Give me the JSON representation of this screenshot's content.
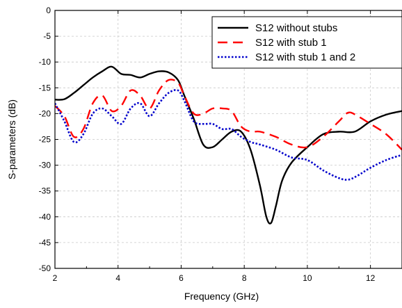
{
  "chart_data": {
    "type": "line",
    "title": "",
    "xlabel": "Frequency (GHz)",
    "ylabel": "S-parameters (dB)",
    "xlim": [
      2,
      13
    ],
    "ylim": [
      -50,
      0
    ],
    "xticks": [
      2,
      4,
      6,
      8,
      10,
      12
    ],
    "yticks": [
      0,
      -5,
      -10,
      -15,
      -20,
      -25,
      -30,
      -35,
      -40,
      -45,
      -50
    ],
    "grid": true,
    "legend_position": "top-right",
    "series": [
      {
        "name": "S12 without stubs",
        "color": "#000000",
        "style": "solid",
        "x": [
          2.0,
          2.3,
          2.6,
          2.9,
          3.2,
          3.5,
          3.8,
          4.1,
          4.4,
          4.7,
          5.0,
          5.3,
          5.6,
          5.9,
          6.1,
          6.4,
          6.7,
          7.0,
          7.3,
          7.6,
          7.9,
          8.2,
          8.5,
          8.7,
          8.85,
          9.0,
          9.2,
          9.5,
          10.0,
          10.5,
          11.0,
          11.5,
          12.0,
          12.5,
          13.0
        ],
        "y": [
          -17.3,
          -17.2,
          -16.0,
          -14.5,
          -13.0,
          -11.8,
          -10.9,
          -12.3,
          -12.5,
          -13.0,
          -12.3,
          -11.8,
          -12.0,
          -13.5,
          -16.5,
          -21.0,
          -26.0,
          -26.5,
          -25.0,
          -23.5,
          -23.5,
          -27.0,
          -34.0,
          -40.0,
          -41.2,
          -38.0,
          -33.0,
          -29.5,
          -26.5,
          -24.0,
          -23.5,
          -23.5,
          -21.5,
          -20.2,
          -19.5
        ]
      },
      {
        "name": "S12 with stub 1",
        "color": "#ff0000",
        "style": "dashed",
        "x": [
          2.0,
          2.3,
          2.6,
          2.9,
          3.2,
          3.5,
          3.8,
          4.1,
          4.4,
          4.7,
          5.0,
          5.3,
          5.6,
          5.9,
          6.1,
          6.4,
          6.7,
          7.0,
          7.3,
          7.6,
          7.9,
          8.2,
          8.5,
          9.0,
          9.5,
          10.0,
          10.5,
          11.0,
          11.3,
          11.6,
          12.0,
          12.5,
          13.0
        ],
        "y": [
          -18.5,
          -20.5,
          -24.5,
          -23.0,
          -18.0,
          -16.5,
          -19.5,
          -18.5,
          -15.5,
          -16.5,
          -19.0,
          -15.5,
          -13.5,
          -14.0,
          -16.5,
          -20.0,
          -20.0,
          -19.0,
          -19.0,
          -19.5,
          -22.5,
          -23.5,
          -23.5,
          -24.5,
          -26.0,
          -26.5,
          -24.5,
          -21.5,
          -19.8,
          -20.5,
          -22.0,
          -24.0,
          -27.0
        ]
      },
      {
        "name": "S12 with stub 1 and 2",
        "color": "#0000cc",
        "style": "dotted",
        "x": [
          2.0,
          2.3,
          2.6,
          2.9,
          3.2,
          3.5,
          3.8,
          4.1,
          4.4,
          4.7,
          5.0,
          5.3,
          5.6,
          5.9,
          6.1,
          6.4,
          6.7,
          7.0,
          7.3,
          7.6,
          7.9,
          8.2,
          8.5,
          9.0,
          9.5,
          10.0,
          10.5,
          11.0,
          11.3,
          11.6,
          12.0,
          12.5,
          13.0
        ],
        "y": [
          -18.0,
          -21.5,
          -25.5,
          -24.0,
          -20.0,
          -19.0,
          -20.5,
          -22.0,
          -19.0,
          -18.0,
          -20.5,
          -18.0,
          -16.0,
          -15.5,
          -17.5,
          -21.5,
          -22.0,
          -22.0,
          -23.0,
          -23.0,
          -24.5,
          -25.5,
          -26.0,
          -27.0,
          -28.5,
          -29.0,
          -31.0,
          -32.5,
          -32.8,
          -32.0,
          -30.5,
          -29.0,
          -28.0
        ]
      }
    ]
  }
}
